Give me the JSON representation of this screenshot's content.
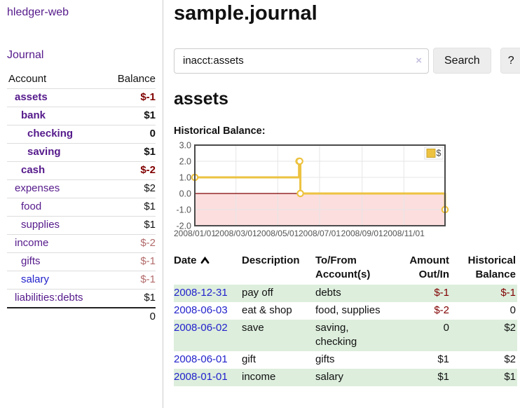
{
  "sidebar": {
    "app_title": "hledger-web",
    "nav_journal": "Journal",
    "accounts": {
      "header_account": "Account",
      "header_balance": "Balance",
      "rows": [
        {
          "label": "assets",
          "indent": 1,
          "bold": true,
          "balance": "$-1",
          "balance_class": "neg-strong"
        },
        {
          "label": "bank",
          "indent": 2,
          "bold": true,
          "balance": "$1",
          "balance_class": ""
        },
        {
          "label": "checking",
          "indent": 3,
          "bold": true,
          "balance": "0",
          "balance_class": ""
        },
        {
          "label": "saving",
          "indent": 3,
          "bold": true,
          "balance": "$1",
          "balance_class": ""
        },
        {
          "label": "cash",
          "indent": 2,
          "bold": true,
          "balance": "$-2",
          "balance_class": "neg-strong"
        },
        {
          "label": "expenses",
          "indent": 1,
          "bold": false,
          "balance": "$2",
          "balance_class": ""
        },
        {
          "label": "food",
          "indent": 2,
          "bold": false,
          "balance": "$1",
          "balance_class": ""
        },
        {
          "label": "supplies",
          "indent": 2,
          "bold": false,
          "balance": "$1",
          "balance_class": ""
        },
        {
          "label": "income",
          "indent": 1,
          "bold": false,
          "balance": "$-2",
          "balance_class": "neg-soft"
        },
        {
          "label": "gifts",
          "indent": 2,
          "bold": false,
          "balance": "$-1",
          "balance_class": "neg-soft"
        },
        {
          "label": "salary",
          "indent": 2,
          "bold": false,
          "blue": true,
          "balance": "$-1",
          "balance_class": "neg-soft"
        },
        {
          "label": "liabilities:debts",
          "indent": 1,
          "bold": false,
          "balance": "$1",
          "balance_class": ""
        }
      ],
      "total": "0"
    }
  },
  "main": {
    "title": "sample.journal",
    "search": {
      "value": "inacct:assets",
      "clear_icon": "×",
      "button_label": "Search",
      "help_label": "?"
    },
    "section_title": "assets",
    "chart_label": "Historical Balance:"
  },
  "register": {
    "headers": [
      {
        "lines": [
          "Date"
        ],
        "sort": "asc",
        "align": "left"
      },
      {
        "lines": [
          "Description"
        ],
        "align": "left"
      },
      {
        "lines": [
          "To/From",
          "Account(s)"
        ],
        "align": "left"
      },
      {
        "lines": [
          "Amount",
          "Out/In"
        ],
        "align": "right"
      },
      {
        "lines": [
          "Historical",
          "Balance"
        ],
        "align": "right"
      }
    ],
    "rows": [
      {
        "date": "2008-12-31",
        "description": "pay off",
        "accounts": "debts",
        "amount": "$-1",
        "amount_neg": true,
        "balance": "$-1",
        "balance_neg": true
      },
      {
        "date": "2008-06-03",
        "description": "eat & shop",
        "accounts": "food, supplies",
        "amount": "$-2",
        "amount_neg": true,
        "balance": "0",
        "balance_neg": false
      },
      {
        "date": "2008-06-02",
        "description": "save",
        "accounts": "saving, checking",
        "amount": "0",
        "amount_neg": false,
        "balance": "$2",
        "balance_neg": false
      },
      {
        "date": "2008-06-01",
        "description": "gift",
        "accounts": "gifts",
        "amount": "$1",
        "amount_neg": false,
        "balance": "$2",
        "balance_neg": false
      },
      {
        "date": "2008-01-01",
        "description": "income",
        "accounts": "salary",
        "amount": "$1",
        "amount_neg": false,
        "balance": "$1",
        "balance_neg": false
      }
    ]
  },
  "chart_data": {
    "type": "line",
    "step": true,
    "title": "Historical Balance",
    "series": [
      {
        "name": "$",
        "points": [
          {
            "x": "2008-01-01",
            "y": 1
          },
          {
            "x": "2008-06-01",
            "y": 2
          },
          {
            "x": "2008-06-02",
            "y": 2
          },
          {
            "x": "2008-06-03",
            "y": 0
          },
          {
            "x": "2008-12-31",
            "y": -1
          }
        ]
      }
    ],
    "x_start": "2008-01-01",
    "x_end": "2008-12-31",
    "x_ticks": [
      "2008/01/01",
      "2008/03/01",
      "2008/05/01",
      "2008/07/01",
      "2008/09/01",
      "2008/11/01"
    ],
    "y_ticks": [
      3.0,
      2.0,
      1.0,
      0.0,
      -1.0,
      -2.0
    ],
    "ylim": [
      -2.0,
      3.0
    ],
    "legend": {
      "label": "$",
      "position": "top-right"
    },
    "grid": true,
    "negative_region": true,
    "colors": {
      "line": "#edc240",
      "marker_fill": "#ffffff",
      "negative_region": "#fcdede",
      "zero_line": "#800000",
      "grid": "#e6e6e6",
      "border": "#4a4a4a",
      "tick_text": "#545454"
    }
  }
}
